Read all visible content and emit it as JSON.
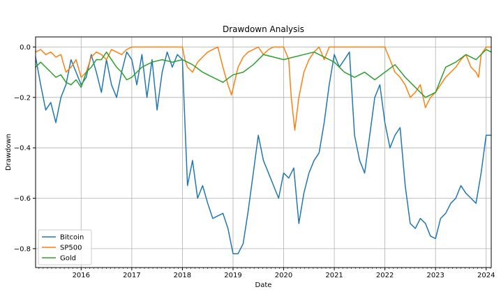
{
  "chart_data": {
    "type": "line",
    "title": "Drawdown Analysis",
    "xlabel": "Date",
    "ylabel": "Drawdown",
    "xlim": [
      2015.1,
      2024.1
    ],
    "ylim": [
      -0.875,
      0.04
    ],
    "grid": true,
    "legend_position": "lower-left",
    "x_ticks": [
      2016,
      2017,
      2018,
      2019,
      2020,
      2021,
      2022,
      2023,
      2024
    ],
    "x_tick_labels": [
      "2016",
      "2017",
      "2018",
      "2019",
      "2020",
      "2021",
      "2022",
      "2023",
      "2024"
    ],
    "y_ticks": [
      0.0,
      -0.2,
      -0.4,
      -0.6,
      -0.8
    ],
    "y_tick_labels": [
      "0.0",
      "−0.2",
      "−0.4",
      "−0.6",
      "−0.8"
    ],
    "series": [
      {
        "name": "Bitcoin",
        "color": "#1f77b4",
        "x": [
          2015.1,
          2015.2,
          2015.3,
          2015.4,
          2015.5,
          2015.6,
          2015.7,
          2015.8,
          2015.9,
          2016.0,
          2016.1,
          2016.2,
          2016.3,
          2016.4,
          2016.5,
          2016.6,
          2016.7,
          2016.8,
          2016.9,
          2017.0,
          2017.1,
          2017.2,
          2017.3,
          2017.4,
          2017.5,
          2017.6,
          2017.7,
          2017.8,
          2017.9,
          2018.0,
          2018.05,
          2018.1,
          2018.2,
          2018.3,
          2018.4,
          2018.5,
          2018.6,
          2018.7,
          2018.8,
          2018.9,
          2019.0,
          2019.1,
          2019.2,
          2019.3,
          2019.4,
          2019.5,
          2019.6,
          2019.7,
          2019.8,
          2019.9,
          2020.0,
          2020.1,
          2020.2,
          2020.3,
          2020.4,
          2020.5,
          2020.6,
          2020.7,
          2020.8,
          2020.9,
          2021.0,
          2021.1,
          2021.2,
          2021.3,
          2021.4,
          2021.5,
          2021.6,
          2021.7,
          2021.8,
          2021.9,
          2022.0,
          2022.1,
          2022.2,
          2022.3,
          2022.4,
          2022.5,
          2022.6,
          2022.7,
          2022.8,
          2022.9,
          2023.0,
          2023.1,
          2023.2,
          2023.3,
          2023.4,
          2023.5,
          2023.6,
          2023.7,
          2023.8,
          2023.9,
          2024.0,
          2024.1
        ],
        "values": [
          -0.04,
          -0.15,
          -0.25,
          -0.22,
          -0.3,
          -0.2,
          -0.15,
          -0.05,
          -0.1,
          -0.15,
          -0.12,
          -0.03,
          -0.1,
          -0.18,
          -0.05,
          -0.15,
          -0.2,
          -0.1,
          -0.02,
          -0.05,
          -0.15,
          -0.03,
          -0.2,
          -0.05,
          -0.25,
          -0.1,
          -0.02,
          -0.08,
          -0.03,
          -0.05,
          -0.3,
          -0.55,
          -0.45,
          -0.6,
          -0.55,
          -0.62,
          -0.68,
          -0.67,
          -0.66,
          -0.72,
          -0.82,
          -0.82,
          -0.78,
          -0.65,
          -0.5,
          -0.35,
          -0.45,
          -0.5,
          -0.55,
          -0.6,
          -0.5,
          -0.52,
          -0.48,
          -0.7,
          -0.58,
          -0.5,
          -0.45,
          -0.42,
          -0.3,
          -0.15,
          -0.03,
          -0.08,
          -0.05,
          -0.02,
          -0.35,
          -0.45,
          -0.5,
          -0.35,
          -0.2,
          -0.15,
          -0.3,
          -0.4,
          -0.35,
          -0.32,
          -0.55,
          -0.7,
          -0.72,
          -0.68,
          -0.7,
          -0.75,
          -0.76,
          -0.68,
          -0.66,
          -0.62,
          -0.6,
          -0.55,
          -0.58,
          -0.6,
          -0.62,
          -0.5,
          -0.35,
          -0.35
        ],
        "annotations": []
      },
      {
        "name": "SP500",
        "color": "#ff7f0e",
        "x": [
          2015.1,
          2015.2,
          2015.3,
          2015.4,
          2015.5,
          2015.6,
          2015.7,
          2015.8,
          2015.9,
          2016.0,
          2016.1,
          2016.2,
          2016.3,
          2016.4,
          2016.5,
          2016.6,
          2016.7,
          2016.8,
          2016.9,
          2017.0,
          2017.5,
          2018.0,
          2018.05,
          2018.1,
          2018.2,
          2018.3,
          2018.4,
          2018.5,
          2018.6,
          2018.7,
          2018.8,
          2018.9,
          2018.97,
          2019.1,
          2019.2,
          2019.3,
          2019.4,
          2019.5,
          2019.6,
          2019.7,
          2019.8,
          2019.9,
          2020.0,
          2020.1,
          2020.15,
          2020.22,
          2020.3,
          2020.4,
          2020.5,
          2020.6,
          2020.7,
          2020.8,
          2020.9,
          2021.0,
          2021.5,
          2022.0,
          2022.1,
          2022.2,
          2022.3,
          2022.4,
          2022.5,
          2022.6,
          2022.7,
          2022.8,
          2022.9,
          2023.0,
          2023.1,
          2023.2,
          2023.3,
          2023.4,
          2023.5,
          2023.6,
          2023.7,
          2023.8,
          2023.85,
          2023.9,
          2024.0,
          2024.1
        ],
        "values": [
          -0.02,
          -0.01,
          -0.03,
          -0.02,
          -0.04,
          -0.03,
          -0.1,
          -0.08,
          -0.05,
          -0.12,
          -0.1,
          -0.04,
          -0.02,
          -0.03,
          -0.05,
          -0.01,
          -0.02,
          -0.03,
          -0.01,
          0.0,
          0.0,
          0.0,
          -0.05,
          -0.08,
          -0.1,
          -0.06,
          -0.04,
          -0.02,
          -0.01,
          0.0,
          -0.08,
          -0.15,
          -0.19,
          -0.08,
          -0.04,
          -0.02,
          -0.01,
          0.0,
          -0.03,
          -0.01,
          0.0,
          0.0,
          0.0,
          -0.05,
          -0.2,
          -0.33,
          -0.2,
          -0.1,
          -0.05,
          -0.02,
          0.0,
          -0.05,
          0.0,
          0.0,
          0.0,
          0.0,
          -0.05,
          -0.1,
          -0.12,
          -0.15,
          -0.2,
          -0.18,
          -0.15,
          -0.24,
          -0.2,
          -0.18,
          -0.15,
          -0.12,
          -0.1,
          -0.08,
          -0.05,
          -0.03,
          -0.08,
          -0.1,
          -0.12,
          -0.03,
          0.0,
          0.0
        ],
        "annotations": []
      },
      {
        "name": "Gold",
        "color": "#2ca02c",
        "x": [
          2015.1,
          2015.2,
          2015.3,
          2015.4,
          2015.5,
          2015.6,
          2015.7,
          2015.8,
          2015.9,
          2016.0,
          2016.1,
          2016.2,
          2016.3,
          2016.4,
          2016.5,
          2016.6,
          2016.7,
          2016.8,
          2016.9,
          2017.0,
          2017.2,
          2017.4,
          2017.6,
          2017.8,
          2018.0,
          2018.2,
          2018.4,
          2018.6,
          2018.8,
          2019.0,
          2019.2,
          2019.4,
          2019.6,
          2019.8,
          2020.0,
          2020.2,
          2020.4,
          2020.6,
          2020.8,
          2021.0,
          2021.2,
          2021.4,
          2021.6,
          2021.8,
          2022.0,
          2022.2,
          2022.4,
          2022.6,
          2022.8,
          2023.0,
          2023.2,
          2023.4,
          2023.6,
          2023.8,
          2024.0,
          2024.1
        ],
        "values": [
          -0.08,
          -0.06,
          -0.08,
          -0.1,
          -0.12,
          -0.11,
          -0.14,
          -0.15,
          -0.13,
          -0.16,
          -0.1,
          -0.08,
          -0.05,
          -0.05,
          -0.02,
          -0.05,
          -0.08,
          -0.1,
          -0.13,
          -0.12,
          -0.08,
          -0.06,
          -0.05,
          -0.06,
          -0.05,
          -0.07,
          -0.1,
          -0.12,
          -0.14,
          -0.11,
          -0.1,
          -0.07,
          -0.03,
          -0.04,
          -0.05,
          -0.04,
          -0.03,
          -0.02,
          -0.04,
          -0.06,
          -0.1,
          -0.12,
          -0.1,
          -0.13,
          -0.1,
          -0.07,
          -0.12,
          -0.16,
          -0.2,
          -0.18,
          -0.08,
          -0.06,
          -0.03,
          -0.05,
          -0.01,
          -0.02
        ],
        "annotations": []
      }
    ]
  }
}
